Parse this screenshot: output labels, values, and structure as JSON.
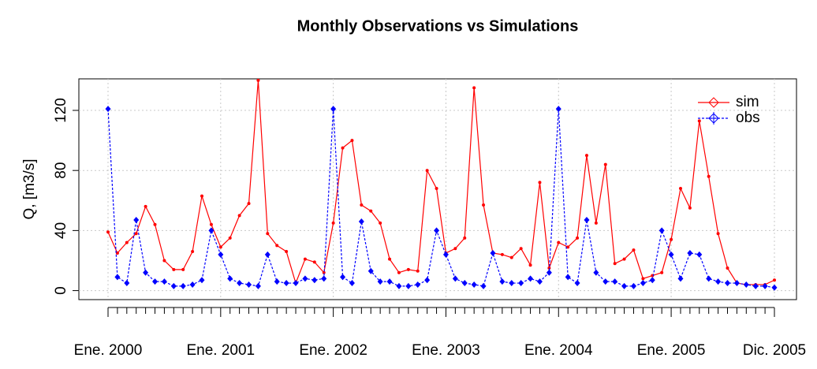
{
  "chart_data": {
    "type": "line",
    "title": "Monthly Observations vs Simulations",
    "y_label": "Q, [m3/s]",
    "categories": [
      "Ene. 2000",
      null,
      null,
      null,
      null,
      null,
      null,
      null,
      null,
      null,
      null,
      null,
      "Ene. 2001",
      null,
      null,
      null,
      null,
      null,
      null,
      null,
      null,
      null,
      null,
      null,
      "Ene. 2002",
      null,
      null,
      null,
      null,
      null,
      null,
      null,
      null,
      null,
      null,
      null,
      "Ene. 2003",
      null,
      null,
      null,
      null,
      null,
      null,
      null,
      null,
      null,
      null,
      null,
      "Ene. 2004",
      null,
      null,
      null,
      null,
      null,
      null,
      null,
      null,
      null,
      null,
      null,
      "Ene. 2005",
      null,
      null,
      null,
      null,
      null,
      null,
      null,
      null,
      null,
      null,
      "Dic. 2005"
    ],
    "series": [
      {
        "name": "sim",
        "color": "#ff0000",
        "values": [
          39,
          25,
          32,
          38,
          56,
          44,
          20,
          14,
          14,
          26,
          63,
          44,
          29,
          35,
          50,
          58,
          140,
          38,
          30,
          26,
          5,
          21,
          19,
          12,
          45,
          95,
          100,
          57,
          53,
          45,
          21,
          12,
          14,
          13,
          80,
          68,
          25,
          28,
          35,
          135,
          57,
          25,
          24,
          22,
          28,
          17,
          72,
          15,
          32,
          29,
          35,
          90,
          45,
          84,
          18,
          21,
          27,
          8,
          10,
          12,
          34,
          68,
          55,
          113,
          76,
          38,
          15,
          5,
          4,
          4,
          4,
          7
        ]
      },
      {
        "name": "obs",
        "color": "#0000ff",
        "values": [
          121,
          9,
          5,
          47,
          12,
          6,
          6,
          3,
          3,
          4,
          7,
          40,
          24,
          8,
          5,
          4,
          3,
          24,
          6,
          5,
          5,
          8,
          7,
          8,
          121,
          9,
          5,
          46,
          13,
          6,
          6,
          3,
          3,
          4,
          7,
          40,
          24,
          8,
          5,
          4,
          3,
          25,
          6,
          5,
          5,
          8,
          6,
          12,
          121,
          9,
          5,
          47,
          12,
          6,
          6,
          3,
          3,
          5,
          7,
          40,
          24,
          8,
          25,
          24,
          8,
          6,
          5,
          5,
          4,
          3,
          3,
          2
        ]
      }
    ],
    "ylim": [
      -6,
      141
    ],
    "yticks": [
      0,
      40,
      80,
      120
    ],
    "grid": true,
    "legend": "topright"
  }
}
